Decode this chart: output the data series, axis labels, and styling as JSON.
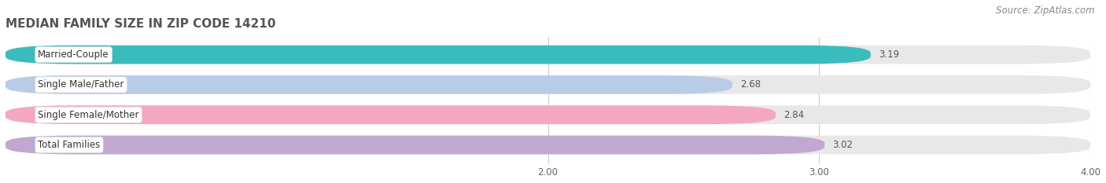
{
  "title": "MEDIAN FAMILY SIZE IN ZIP CODE 14210",
  "source": "Source: ZipAtlas.com",
  "categories": [
    "Married-Couple",
    "Single Male/Father",
    "Single Female/Mother",
    "Total Families"
  ],
  "values": [
    3.19,
    2.68,
    2.84,
    3.02
  ],
  "bar_colors": [
    "#3bbcbc",
    "#b8cce8",
    "#f4a8c0",
    "#c0a8d0"
  ],
  "bar_bg_color": "#e8e8e8",
  "background_color": "#ffffff",
  "xlim_min": 0.0,
  "xlim_max": 4.0,
  "xticks": [
    2.0,
    3.0,
    4.0
  ],
  "xtick_labels": [
    "2.00",
    "3.00",
    "4.00"
  ],
  "label_fontsize": 8.5,
  "value_fontsize": 8.5,
  "title_fontsize": 11,
  "source_fontsize": 8.5,
  "bar_height": 0.62,
  "value_label_color": "#555555",
  "grid_color": "#cccccc",
  "label_box_color": "#ffffff",
  "label_text_color": "#333333"
}
